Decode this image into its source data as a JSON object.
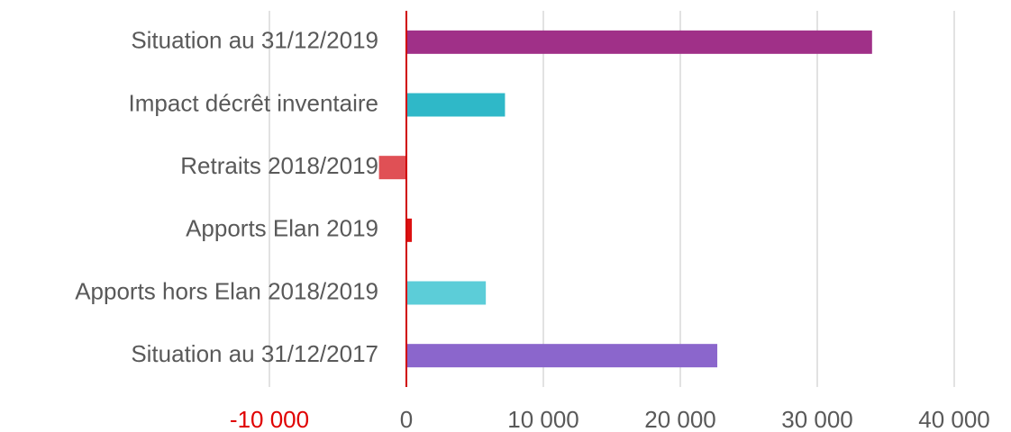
{
  "chart_data": {
    "type": "barh",
    "categories": [
      "Situation au 31/12/2019",
      "Impact décrêt inventaire",
      "Retraits 2018/2019",
      "Apports Elan 2019",
      "Apports hors Elan 2018/2019",
      "Situation au 31/12/2017"
    ],
    "values": [
      34000,
      7200,
      -2000,
      400,
      5800,
      22700
    ],
    "colors": [
      "#a03088",
      "#2fb8c8",
      "#e05055",
      "#dd1111",
      "#5ccdd8",
      "#8b66cc"
    ],
    "xlim": [
      -10000,
      40000
    ],
    "xticks": [
      {
        "value": -10000,
        "label": "-10 000",
        "color": "#e00000"
      },
      0,
      {
        "value": 10000,
        "label": "10 000"
      },
      {
        "value": 20000,
        "label": "20 000"
      },
      {
        "value": 30000,
        "label": "30 000"
      },
      {
        "value": 40000,
        "label": "40 000"
      }
    ],
    "grid": true,
    "zero_line_color": "#d00000"
  }
}
